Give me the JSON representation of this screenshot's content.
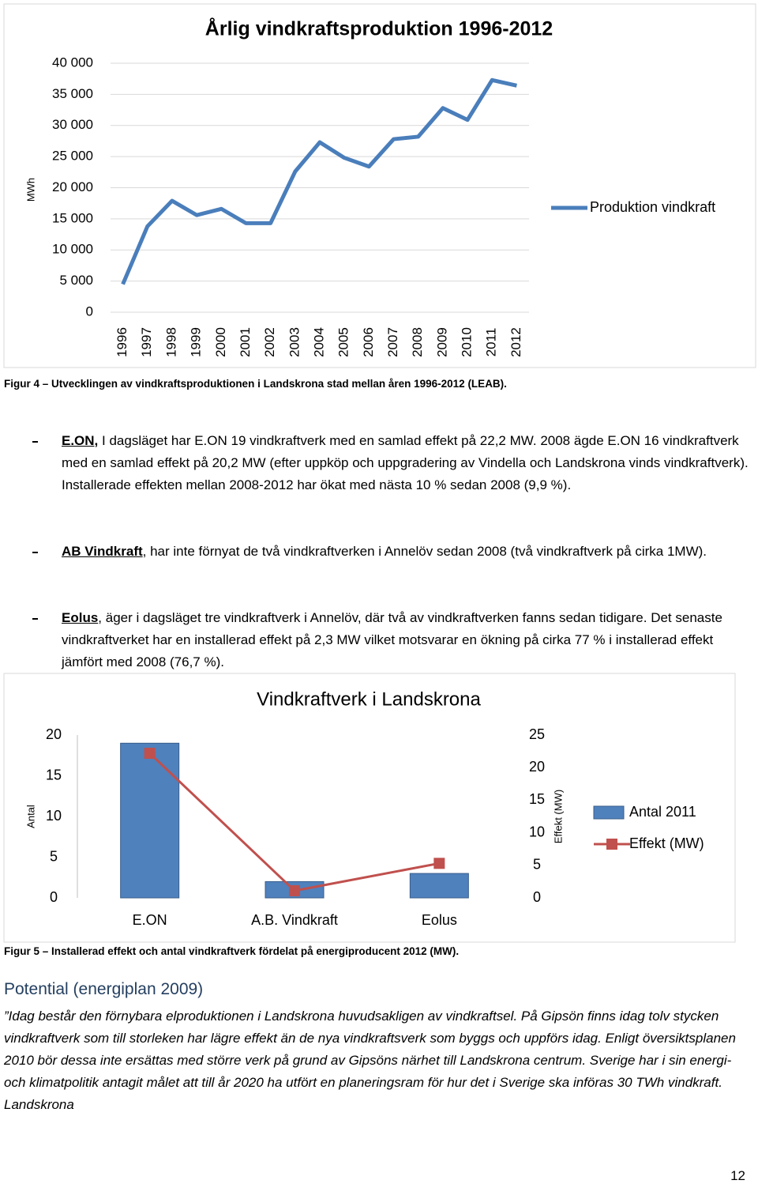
{
  "chart_data": [
    {
      "type": "line",
      "title": "Årlig vindkraftsproduktion 1996-2012",
      "y_label": "MWh",
      "categories": [
        "1996",
        "1997",
        "1998",
        "1999",
        "2000",
        "2001",
        "2002",
        "2003",
        "2004",
        "2005",
        "2006",
        "2007",
        "2008",
        "2009",
        "2010",
        "2011",
        "2012"
      ],
      "series": [
        {
          "name": "Produktion vindkraft",
          "color": "#4a7ebb",
          "values": [
            4500,
            13800,
            17900,
            15600,
            16600,
            14300,
            14300,
            22600,
            27300,
            24800,
            23400,
            27800,
            28200,
            32800,
            30900,
            37300,
            36400
          ]
        }
      ],
      "ylim": [
        0,
        40000
      ],
      "yticks": [
        0,
        {
          "value": 5000,
          "label": "5 000"
        },
        {
          "value": 10000,
          "label": "10 000"
        },
        {
          "value": 15000,
          "label": "15 000"
        },
        {
          "value": 20000,
          "label": "20 000"
        },
        {
          "value": 25000,
          "label": "25 000"
        },
        {
          "value": 30000,
          "label": "30 000"
        },
        {
          "value": 35000,
          "label": "35 000"
        },
        {
          "value": 40000,
          "label": "40 000"
        }
      ],
      "grid": true,
      "legend": "right"
    },
    {
      "type": "bar",
      "title": "Vindkraftverk i Landskrona",
      "y_label": "Antal",
      "y2_label": "Effekt (MW)",
      "categories": [
        "E.ON",
        "A.B. Vindkraft",
        "Eolus"
      ],
      "series": [
        {
          "name": "Antal 2011",
          "color": "#4f81bd",
          "values": [
            19,
            2,
            3
          ]
        },
        {
          "name": "Effekt (MW)",
          "color": "#c0504d",
          "type": "line",
          "axis": "y2",
          "values": [
            22.2,
            1.1,
            5.3
          ]
        }
      ],
      "ylim": [
        0,
        20
      ],
      "yticks": [
        0,
        5,
        10,
        15,
        20
      ],
      "y2lim": [
        0,
        25
      ],
      "y2ticks": [
        0,
        5,
        10,
        15,
        20,
        25
      ],
      "grid": false,
      "legend": "right"
    }
  ],
  "document": {
    "figure4_caption": "Figur 4 – Utvecklingen av vindkraftsproduktionen i Landskrona stad mellan åren 1996-2012 (LEAB).",
    "bullets": [
      {
        "lead": "E.ON,",
        "text": " I dagsläget har E.ON 19 vindkraftverk med en samlad effekt på 22,2 MW. 2008 ägde E.ON 16 vindkraftverk med en samlad effekt på 20,2 MW (efter uppköp och uppgradering av Vindella och Landskrona vinds vindkraftverk). Installerade effekten mellan 2008-2012 har ökat med nästa 10 % sedan 2008 (9,9 %)."
      },
      {
        "lead": "AB Vindkraft",
        "text": ", har inte förnyat de två vindkraftverken i Annelöv sedan 2008 (två vindkraftverk på cirka 1MW)."
      },
      {
        "lead": "Eolus",
        "text": ", äger i dagsläget tre vindkraftverk i Annelöv, där två av vindkraftverken fanns sedan tidigare. Det senaste vindkraftverket har en installerad effekt på 2,3 MW vilket motsvarar en ökning på cirka 77 % i installerad effekt jämfört med 2008 (76,7 %)."
      }
    ],
    "figure5_caption": "Figur 5 – Installerad effekt och antal vindkraftverk fördelat på energiproducent 2012 (MW).",
    "heading": "Potential (energiplan 2009)",
    "paragraph": "”Idag består den förnybara elproduktionen i Landskrona huvudsakligen av vindkraftsel. På Gipsön finns idag tolv stycken vindkraftverk som till storleken har lägre effekt än de nya vindkraftsverk som byggs och uppförs idag. Enligt översiktsplanen 2010 bör dessa inte ersättas med större verk på grund av Gipsöns närhet till Landskrona centrum. Sverige har i sin energi- och klimatpolitik antagit målet att till år 2020 ha utfört en planeringsram för hur det i Sverige ska införas 30 TWh vindkraft. Landskrona",
    "page_number": "12"
  }
}
